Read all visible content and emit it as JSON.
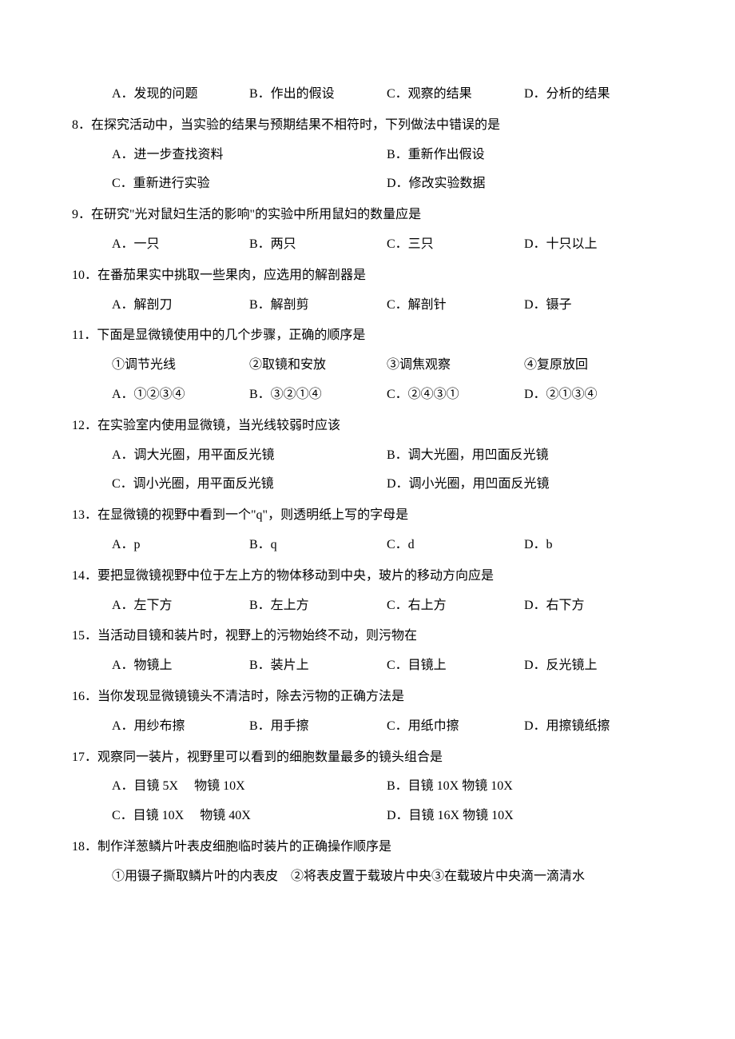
{
  "questions": [
    {
      "num": "",
      "options": [
        {
          "label": "A",
          "text": "发现的问题"
        },
        {
          "label": "B",
          "text": "作出的假设"
        },
        {
          "label": "C",
          "text": "观察的结果"
        },
        {
          "label": "D",
          "text": "分析的结果"
        }
      ]
    },
    {
      "num": "8",
      "stem": "在探究活动中，当实验的结果与预期结果不相符时，下列做法中错误的是",
      "layout": "2col",
      "options": [
        {
          "label": "A",
          "text": "进一步查找资料"
        },
        {
          "label": "B",
          "text": "重新作出假设"
        },
        {
          "label": "C",
          "text": "重新进行实验"
        },
        {
          "label": "D",
          "text": "修改实验数据"
        }
      ]
    },
    {
      "num": "9",
      "stem": "在研究\"光对鼠妇生活的影响\"的实验中所用鼠妇的数量应是",
      "layout": "4col",
      "options": [
        {
          "label": "A",
          "text": "一只"
        },
        {
          "label": "B",
          "text": "两只"
        },
        {
          "label": "C",
          "text": "三只"
        },
        {
          "label": "D",
          "text": "十只以上"
        }
      ]
    },
    {
      "num": "10",
      "stem": "在番茄果实中挑取一些果肉，应选用的解剖器是",
      "layout": "4col",
      "options": [
        {
          "label": "A",
          "text": "解剖刀"
        },
        {
          "label": "B",
          "text": "解剖剪"
        },
        {
          "label": "C",
          "text": "解剖针"
        },
        {
          "label": "D",
          "text": "镊子"
        }
      ]
    },
    {
      "num": "11",
      "stem": "下面是显微镜使用中的几个步骤，正确的顺序是",
      "steps": [
        "①调节光线",
        "②取镜和安放",
        "③调焦观察",
        "④复原放回"
      ],
      "layout": "4col",
      "options": [
        {
          "label": "A",
          "text": "①②③④"
        },
        {
          "label": "B",
          "text": "③②①④"
        },
        {
          "label": "C",
          "text": "②④③①"
        },
        {
          "label": "D",
          "text": "②①③④"
        }
      ]
    },
    {
      "num": "12",
      "stem": "在实验室内使用显微镜，当光线较弱时应该",
      "layout": "2col",
      "options": [
        {
          "label": "A",
          "text": "调大光圈，用平面反光镜"
        },
        {
          "label": "B",
          "text": "调大光圈，用凹面反光镜"
        },
        {
          "label": "C",
          "text": "调小光圈，用平面反光镜"
        },
        {
          "label": "D",
          "text": "调小光圈，用凹面反光镜"
        }
      ]
    },
    {
      "num": "13",
      "stem": "在显微镜的视野中看到一个\"q\"，则透明纸上写的字母是",
      "layout": "4col",
      "options": [
        {
          "label": "A",
          "text": "p"
        },
        {
          "label": "B",
          "text": "q"
        },
        {
          "label": "C",
          "text": "d"
        },
        {
          "label": "D",
          "text": "b"
        }
      ]
    },
    {
      "num": "14",
      "stem": "要把显微镜视野中位于左上方的物体移动到中央，玻片的移动方向应是",
      "layout": "4col",
      "options": [
        {
          "label": "A",
          "text": "左下方"
        },
        {
          "label": "B",
          "text": "左上方"
        },
        {
          "label": "C",
          "text": "右上方"
        },
        {
          "label": "D",
          "text": "右下方"
        }
      ]
    },
    {
      "num": "15",
      "stem": "当活动目镜和装片时，视野上的污物始终不动，则污物在",
      "layout": "4col",
      "options": [
        {
          "label": "A",
          "text": "物镜上"
        },
        {
          "label": "B",
          "text": "装片上"
        },
        {
          "label": "C",
          "text": "目镜上"
        },
        {
          "label": "D",
          "text": "反光镜上"
        }
      ]
    },
    {
      "num": "16",
      "stem": "当你发现显微镜镜头不清洁时，除去污物的正确方法是",
      "layout": "4col",
      "options": [
        {
          "label": "A",
          "text": "用纱布擦"
        },
        {
          "label": "B",
          "text": "用手擦"
        },
        {
          "label": "C",
          "text": "用纸巾擦"
        },
        {
          "label": "D",
          "text": "用擦镜纸擦"
        }
      ]
    },
    {
      "num": "17",
      "stem": "观察同一装片，视野里可以看到的细胞数量最多的镜头组合是",
      "layout": "2col",
      "options": [
        {
          "label": "A",
          "text": "目镜 5X　 物镜 10X"
        },
        {
          "label": "B",
          "text": "目镜 10X 物镜 10X"
        },
        {
          "label": "C",
          "text": "目镜 10X　 物镜 40X"
        },
        {
          "label": "D",
          "text": "目镜 16X 物镜 10X"
        }
      ]
    },
    {
      "num": "18",
      "stem": "制作洋葱鳞片叶表皮细胞临时装片的正确操作顺序是",
      "steps_line": "①用镊子撕取鳞片叶的内表皮　②将表皮置于载玻片中央③在载玻片中央滴一滴清水"
    }
  ]
}
